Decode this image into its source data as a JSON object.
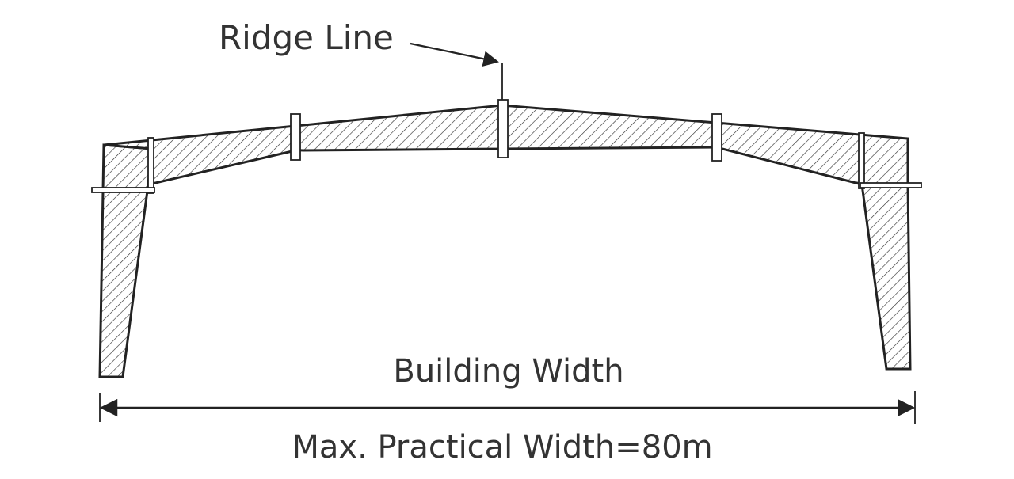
{
  "labels": {
    "ridge_line": "Ridge Line",
    "building_width": "Building Width",
    "max_practical_width": "Max. Practical Width=80m"
  },
  "colors": {
    "text": "#333333",
    "line": "#222222",
    "background": "#ffffff"
  }
}
